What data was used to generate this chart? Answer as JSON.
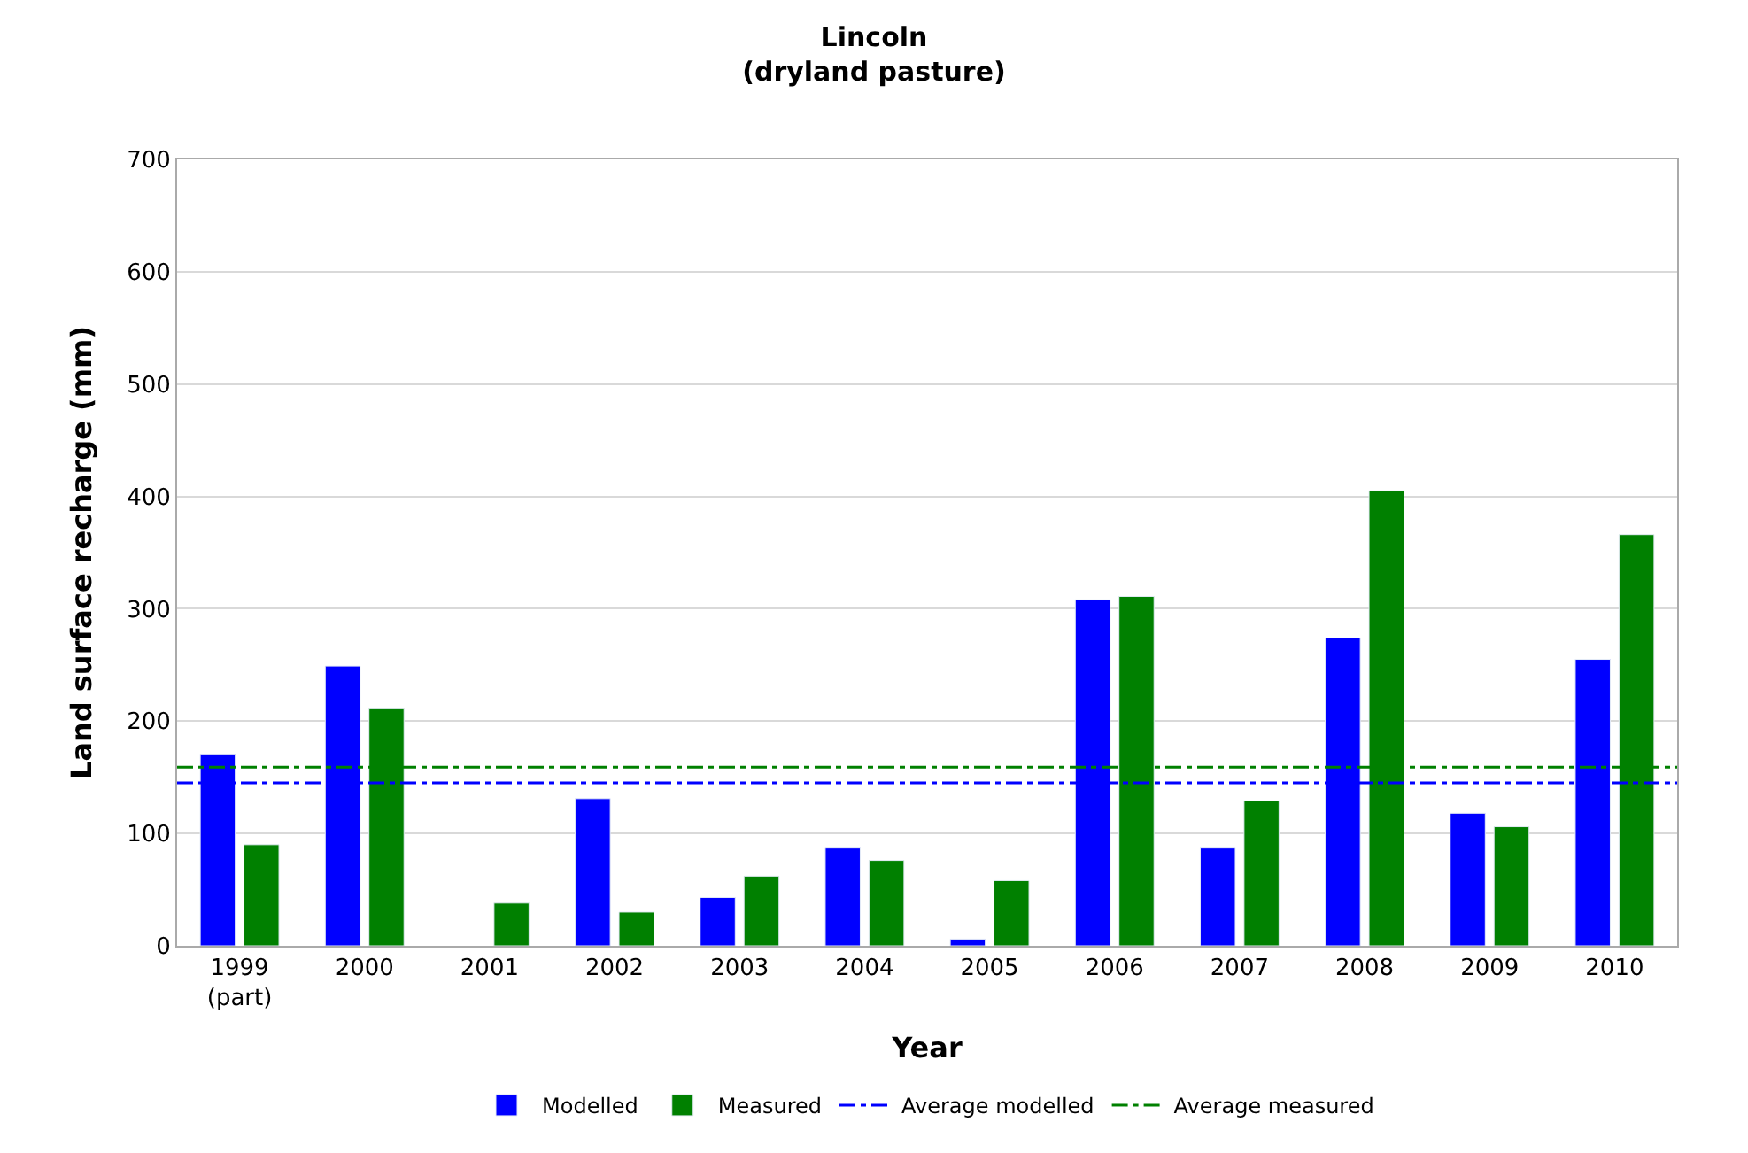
{
  "chart_data": {
    "type": "bar",
    "title": "Lincoln\n(dryland pasture)",
    "xlabel": "Year",
    "ylabel": "Land surface recharge (mm)",
    "categories": [
      "1999\n(part)",
      "2000",
      "2001",
      "2002",
      "2003",
      "2004",
      "2005",
      "2006",
      "2007",
      "2008",
      "2009",
      "2010"
    ],
    "series": [
      {
        "name": "Modelled",
        "color": "#0000ff",
        "values": [
          170,
          249,
          null,
          131,
          43,
          87,
          6,
          308,
          87,
          274,
          118,
          255
        ]
      },
      {
        "name": "Measured",
        "color": "#008000",
        "values": [
          90,
          211,
          38,
          30,
          62,
          76,
          58,
          311,
          129,
          405,
          106,
          366
        ]
      }
    ],
    "ref_lines": [
      {
        "axis": "y",
        "value": 145,
        "label": "Average modelled",
        "color": "#0000ff",
        "line_style": "dashdot"
      },
      {
        "axis": "y",
        "value": 159,
        "label": "Average measured",
        "color": "#008000",
        "line_style": "dashdot"
      }
    ],
    "ylim": [
      0,
      700
    ],
    "yticks": [
      0,
      100,
      200,
      300,
      400,
      500,
      600,
      700
    ],
    "grid": "y",
    "legend": "bottom"
  }
}
